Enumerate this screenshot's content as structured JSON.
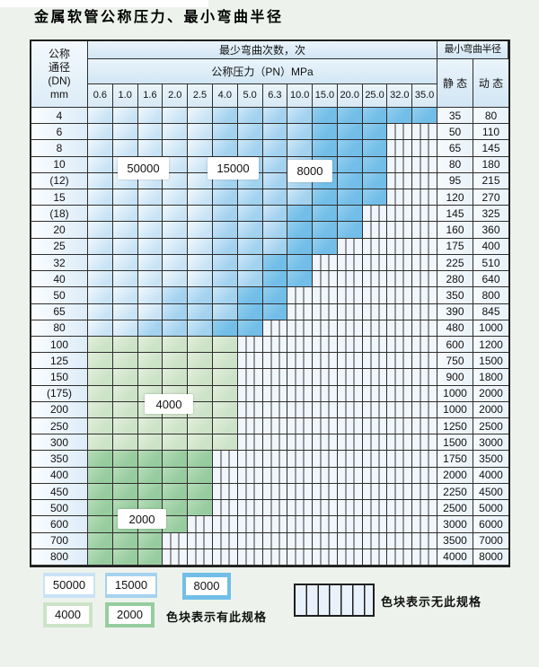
{
  "title": "金属软管公称压力、最小弯曲半径",
  "table": {
    "corner": [
      "公称",
      "通径",
      "(DN)",
      "mm"
    ],
    "bend_header": "最少弯曲次数，次",
    "pressure_header": "公称压力（PN）MPa",
    "radius_header": "最小弯曲半径",
    "static_label": "静 态",
    "dynamic_label": "动 态",
    "pressures": [
      "0.6",
      "1.0",
      "1.6",
      "2.0",
      "2.5",
      "4.0",
      "5.0",
      "6.3",
      "10.0",
      "15.0",
      "20.0",
      "25.0",
      "32.0",
      "35.0"
    ],
    "rows": [
      {
        "dn": "4",
        "tiers": "LLLLLMMMMDDDDD",
        "static": "35",
        "dynamic": "80"
      },
      {
        "dn": "6",
        "tiers": "LLLLLMMMMDDDXX",
        "static": "50",
        "dynamic": "110"
      },
      {
        "dn": "8",
        "tiers": "LLLLLMMMMDDDXX",
        "static": "65",
        "dynamic": "145"
      },
      {
        "dn": "10",
        "tiers": "LLLLLMMMMDDDXX",
        "static": "80",
        "dynamic": "180"
      },
      {
        "dn": "(12)",
        "tiers": "LLLLLMMMMDDDXX",
        "static": "95",
        "dynamic": "215"
      },
      {
        "dn": "15",
        "tiers": "LLLLLMMMMDDDXX",
        "static": "120",
        "dynamic": "270"
      },
      {
        "dn": "(18)",
        "tiers": "LLLLLMMMDDDXXX",
        "static": "145",
        "dynamic": "325"
      },
      {
        "dn": "20",
        "tiers": "LLLLLMMMDDDXXX",
        "static": "160",
        "dynamic": "360"
      },
      {
        "dn": "25",
        "tiers": "LLLLLMMMDDXXXX",
        "static": "175",
        "dynamic": "400"
      },
      {
        "dn": "32",
        "tiers": "LLLLLMMDDXXXXX",
        "static": "225",
        "dynamic": "510"
      },
      {
        "dn": "40",
        "tiers": "LLLLLMMDDXXXXX",
        "static": "280",
        "dynamic": "640"
      },
      {
        "dn": "50",
        "tiers": "LLLMMMDDXXXXXX",
        "static": "350",
        "dynamic": "800"
      },
      {
        "dn": "65",
        "tiers": "LLLMMMDDXXXXXX",
        "static": "390",
        "dynamic": "845"
      },
      {
        "dn": "80",
        "tiers": "LLMMMDDXXXXXXX",
        "static": "480",
        "dynamic": "1000"
      },
      {
        "dn": "100",
        "tiers": "ggggggXXXXXXXX",
        "static": "600",
        "dynamic": "1200"
      },
      {
        "dn": "125",
        "tiers": "ggggggXXXXXXXX",
        "static": "750",
        "dynamic": "1500"
      },
      {
        "dn": "150",
        "tiers": "ggggggXXXXXXXX",
        "static": "900",
        "dynamic": "1800"
      },
      {
        "dn": "(175)",
        "tiers": "ggggggXXXXXXXX",
        "static": "1000",
        "dynamic": "2000"
      },
      {
        "dn": "200",
        "tiers": "ggggggXXXXXXXX",
        "static": "1000",
        "dynamic": "2000"
      },
      {
        "dn": "250",
        "tiers": "ggggggXXXXXXXX",
        "static": "1250",
        "dynamic": "2500"
      },
      {
        "dn": "300",
        "tiers": "ggggggXXXXXXXX",
        "static": "1500",
        "dynamic": "3000"
      },
      {
        "dn": "350",
        "tiers": "eeeeeXXXXXXXXX",
        "static": "1750",
        "dynamic": "3500"
      },
      {
        "dn": "400",
        "tiers": "eeeeeXXXXXXXXX",
        "static": "2000",
        "dynamic": "4000"
      },
      {
        "dn": "450",
        "tiers": "eeeeeXXXXXXXXX",
        "static": "2250",
        "dynamic": "4500"
      },
      {
        "dn": "500",
        "tiers": "eeeeeXXXXXXXXX",
        "static": "2500",
        "dynamic": "5000"
      },
      {
        "dn": "600",
        "tiers": "eeeeXXXXXXXXXX",
        "static": "3000",
        "dynamic": "6000"
      },
      {
        "dn": "700",
        "tiers": "eeeXXXXXXXXXXX",
        "static": "3500",
        "dynamic": "7000"
      },
      {
        "dn": "800",
        "tiers": "eeeXXXXXXXXXXX",
        "static": "4000",
        "dynamic": "8000"
      }
    ]
  },
  "overlays": {
    "l50000": "50000",
    "l15000": "15000",
    "l8000": "8000",
    "l4000": "4000",
    "l2000": "2000"
  },
  "legend": {
    "items": [
      {
        "label": "50000",
        "color": "#c9e2f5"
      },
      {
        "label": "15000",
        "color": "#a5d2ef"
      },
      {
        "label": "8000",
        "color": "#72bee8"
      },
      {
        "label": "4000",
        "color": "#cde3c8"
      },
      {
        "label": "2000",
        "color": "#97cc9f"
      }
    ],
    "has_spec_note": "色块表示有此规格",
    "no_spec_note": "色块表示无此规格"
  },
  "colors": {
    "page_bg": "#edf3ec",
    "cell_bg": "#f0f6fb",
    "header_bg": "#d2e6f4",
    "tier_50000": "#c9e2f5",
    "tier_15000": "#a5d2ef",
    "tier_8000": "#72bee8",
    "tier_4000": "#cde3c8",
    "tier_2000": "#97cc9f",
    "grid_line": "#2e2e2e"
  },
  "chart_data": {
    "type": "heatmap",
    "title": "金属软管公称压力、最小弯曲半径",
    "xlabel": "公称压力（PN）MPa",
    "ylabel": "公称通径 (DN) mm",
    "value_label": "最少弯曲次数，次",
    "x": [
      0.6,
      1.0,
      1.6,
      2.0,
      2.5,
      4.0,
      5.0,
      6.3,
      10.0,
      15.0,
      20.0,
      25.0,
      32.0,
      35.0
    ],
    "categories": [
      "4",
      "6",
      "8",
      "10",
      "(12)",
      "15",
      "(18)",
      "20",
      "25",
      "32",
      "40",
      "50",
      "65",
      "80",
      "100",
      "125",
      "150",
      "(175)",
      "200",
      "250",
      "300",
      "350",
      "400",
      "450",
      "500",
      "600",
      "700",
      "800"
    ],
    "bend_cycles": [
      [
        50000,
        50000,
        50000,
        50000,
        50000,
        15000,
        15000,
        15000,
        15000,
        8000,
        8000,
        8000,
        8000,
        8000
      ],
      [
        50000,
        50000,
        50000,
        50000,
        50000,
        15000,
        15000,
        15000,
        15000,
        8000,
        8000,
        8000,
        null,
        null
      ],
      [
        50000,
        50000,
        50000,
        50000,
        50000,
        15000,
        15000,
        15000,
        15000,
        8000,
        8000,
        8000,
        null,
        null
      ],
      [
        50000,
        50000,
        50000,
        50000,
        50000,
        15000,
        15000,
        15000,
        15000,
        8000,
        8000,
        8000,
        null,
        null
      ],
      [
        50000,
        50000,
        50000,
        50000,
        50000,
        15000,
        15000,
        15000,
        15000,
        8000,
        8000,
        8000,
        null,
        null
      ],
      [
        50000,
        50000,
        50000,
        50000,
        50000,
        15000,
        15000,
        15000,
        15000,
        8000,
        8000,
        8000,
        null,
        null
      ],
      [
        50000,
        50000,
        50000,
        50000,
        50000,
        15000,
        15000,
        15000,
        8000,
        8000,
        8000,
        null,
        null,
        null
      ],
      [
        50000,
        50000,
        50000,
        50000,
        50000,
        15000,
        15000,
        15000,
        8000,
        8000,
        8000,
        null,
        null,
        null
      ],
      [
        50000,
        50000,
        50000,
        50000,
        50000,
        15000,
        15000,
        15000,
        8000,
        8000,
        null,
        null,
        null,
        null
      ],
      [
        50000,
        50000,
        50000,
        50000,
        50000,
        15000,
        15000,
        8000,
        8000,
        null,
        null,
        null,
        null,
        null
      ],
      [
        50000,
        50000,
        50000,
        50000,
        50000,
        15000,
        15000,
        8000,
        8000,
        null,
        null,
        null,
        null,
        null
      ],
      [
        50000,
        50000,
        50000,
        15000,
        15000,
        15000,
        8000,
        8000,
        null,
        null,
        null,
        null,
        null,
        null
      ],
      [
        50000,
        50000,
        50000,
        15000,
        15000,
        15000,
        8000,
        8000,
        null,
        null,
        null,
        null,
        null,
        null
      ],
      [
        50000,
        50000,
        15000,
        15000,
        15000,
        8000,
        8000,
        null,
        null,
        null,
        null,
        null,
        null,
        null
      ],
      [
        4000,
        4000,
        4000,
        4000,
        4000,
        4000,
        null,
        null,
        null,
        null,
        null,
        null,
        null,
        null
      ],
      [
        4000,
        4000,
        4000,
        4000,
        4000,
        4000,
        null,
        null,
        null,
        null,
        null,
        null,
        null,
        null
      ],
      [
        4000,
        4000,
        4000,
        4000,
        4000,
        4000,
        null,
        null,
        null,
        null,
        null,
        null,
        null,
        null
      ],
      [
        4000,
        4000,
        4000,
        4000,
        4000,
        4000,
        null,
        null,
        null,
        null,
        null,
        null,
        null,
        null
      ],
      [
        4000,
        4000,
        4000,
        4000,
        4000,
        4000,
        null,
        null,
        null,
        null,
        null,
        null,
        null,
        null
      ],
      [
        4000,
        4000,
        4000,
        4000,
        4000,
        4000,
        null,
        null,
        null,
        null,
        null,
        null,
        null,
        null
      ],
      [
        4000,
        4000,
        4000,
        4000,
        4000,
        4000,
        null,
        null,
        null,
        null,
        null,
        null,
        null,
        null
      ],
      [
        2000,
        2000,
        2000,
        2000,
        2000,
        null,
        null,
        null,
        null,
        null,
        null,
        null,
        null,
        null
      ],
      [
        2000,
        2000,
        2000,
        2000,
        2000,
        null,
        null,
        null,
        null,
        null,
        null,
        null,
        null,
        null
      ],
      [
        2000,
        2000,
        2000,
        2000,
        2000,
        null,
        null,
        null,
        null,
        null,
        null,
        null,
        null,
        null
      ],
      [
        2000,
        2000,
        2000,
        2000,
        2000,
        null,
        null,
        null,
        null,
        null,
        null,
        null,
        null,
        null
      ],
      [
        2000,
        2000,
        2000,
        2000,
        null,
        null,
        null,
        null,
        null,
        null,
        null,
        null,
        null,
        null
      ],
      [
        2000,
        2000,
        2000,
        null,
        null,
        null,
        null,
        null,
        null,
        null,
        null,
        null,
        null,
        null
      ],
      [
        2000,
        2000,
        2000,
        null,
        null,
        null,
        null,
        null,
        null,
        null,
        null,
        null,
        null,
        null
      ]
    ],
    "static_radius": [
      35,
      50,
      65,
      80,
      95,
      120,
      145,
      160,
      175,
      225,
      280,
      350,
      390,
      480,
      600,
      750,
      900,
      1000,
      1000,
      1250,
      1500,
      1750,
      2000,
      2250,
      2500,
      3000,
      3500,
      4000
    ],
    "dynamic_radius": [
      80,
      110,
      145,
      180,
      215,
      270,
      325,
      360,
      400,
      510,
      640,
      800,
      845,
      1000,
      1200,
      1500,
      1800,
      2000,
      2000,
      2500,
      3000,
      3500,
      4000,
      4500,
      5000,
      6000,
      7000,
      8000
    ],
    "legend_position": "bottom",
    "grid": true
  }
}
